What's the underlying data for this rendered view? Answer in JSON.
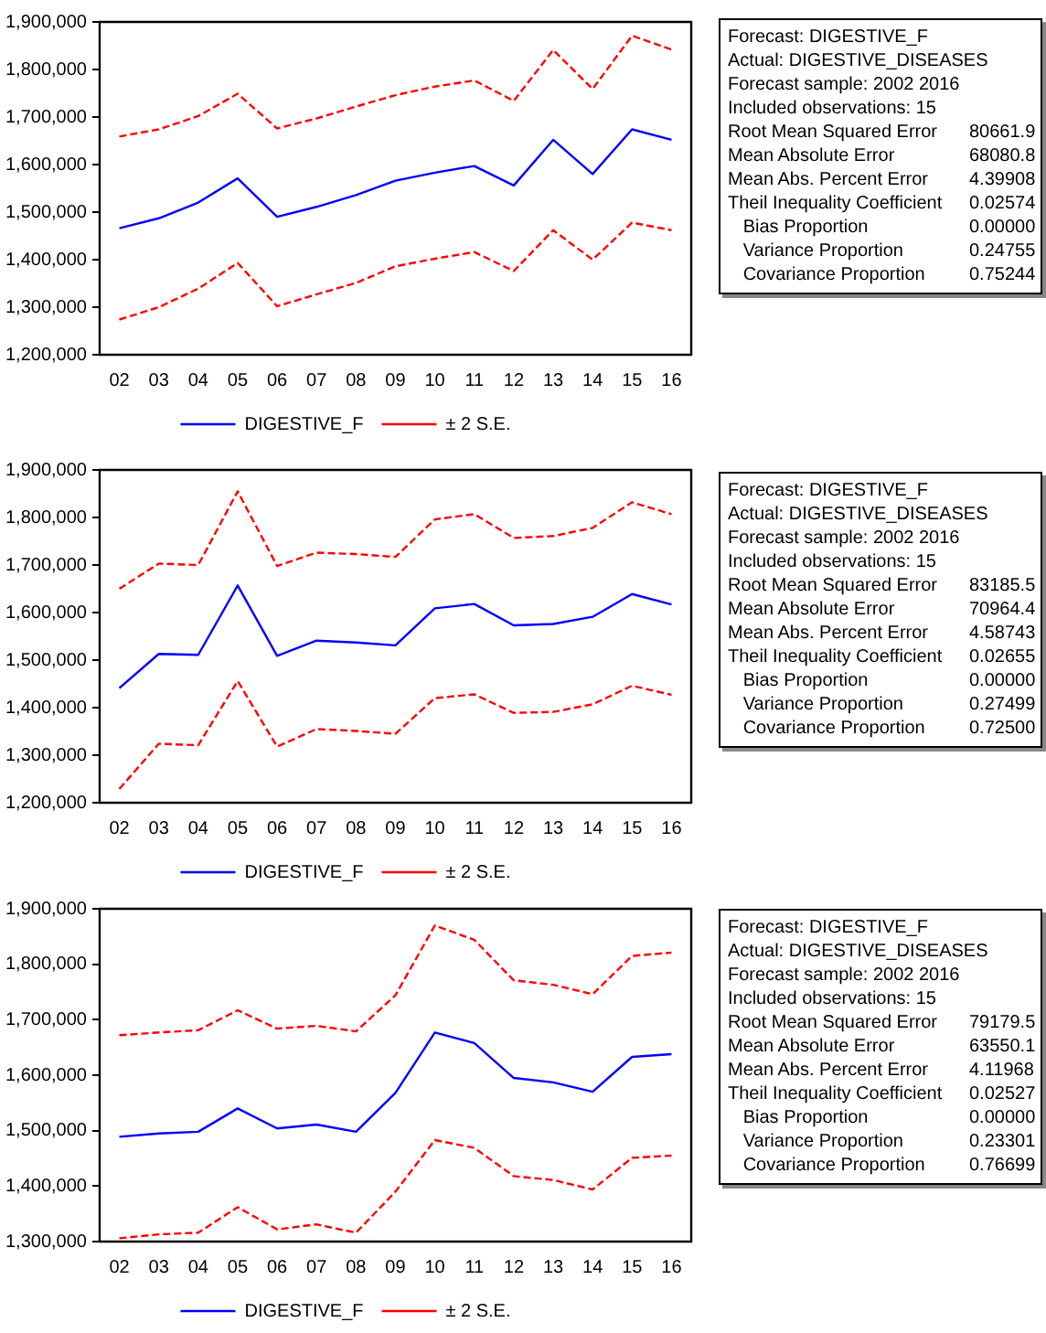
{
  "chart_data": [
    {
      "type": "line",
      "categories": [
        "02",
        "03",
        "04",
        "05",
        "06",
        "07",
        "08",
        "09",
        "10",
        "11",
        "12",
        "13",
        "14",
        "15",
        "16"
      ],
      "ylim": [
        1200000,
        1900000
      ],
      "yticks": [
        {
          "value": 1200000,
          "label": "1,200,000"
        },
        {
          "value": 1300000,
          "label": "1,300,000"
        },
        {
          "value": 1400000,
          "label": "1,400,000"
        },
        {
          "value": 1500000,
          "label": "1,500,000"
        },
        {
          "value": 1600000,
          "label": "1,600,000"
        },
        {
          "value": 1700000,
          "label": "1,700,000"
        },
        {
          "value": 1800000,
          "label": "1,800,000"
        },
        {
          "value": 1900000,
          "label": "1,900,000"
        }
      ],
      "grid": false,
      "legend": "bottom",
      "marker": "none",
      "series": [
        {
          "name": "DIGESTIVE_F",
          "color": "#0000ff",
          "line_style": "solid",
          "values": [
            1466000,
            1487000,
            1520000,
            1571000,
            1490000,
            1511000,
            1536000,
            1566000,
            1583000,
            1597000,
            1556000,
            1652000,
            1580000,
            1674000,
            1652000
          ]
        },
        {
          "name": "± 2 S.E.",
          "color": "#ff0000",
          "line_style": "dashed",
          "values": [
            1659000,
            1674000,
            1702000,
            1749000,
            1676000,
            1697000,
            1722000,
            1746000,
            1764000,
            1777000,
            1734000,
            1841000,
            1759000,
            1871000,
            1842000
          ]
        },
        {
          "color": "#ff0000",
          "line_style": "dashed",
          "values": [
            1274000,
            1300000,
            1339000,
            1393000,
            1302000,
            1327000,
            1351000,
            1386000,
            1402000,
            1416000,
            1376000,
            1462000,
            1400000,
            1478000,
            1462000
          ]
        }
      ]
    },
    {
      "type": "other",
      "annotations": [
        "Forecast: DIGESTIVE_F",
        "Actual: DIGESTIVE_DISEASES",
        "Forecast sample: 2002 2016",
        "Included observations: 15",
        "Root Mean Squared Error\t80661.9",
        "Mean Absolute Error\t68080.8",
        "Mean Abs. Percent Error\t4.39908",
        "Theil Inequality Coefficient\t0.02574",
        "   Bias Proportion\t0.00000",
        "   Variance Proportion\t0.24755",
        "   Covariance Proportion\t0.75244"
      ]
    },
    {
      "type": "line",
      "categories": [
        "02",
        "03",
        "04",
        "05",
        "06",
        "07",
        "08",
        "09",
        "10",
        "11",
        "12",
        "13",
        "14",
        "15",
        "16"
      ],
      "ylim": [
        1200000,
        1900000
      ],
      "yticks": [
        {
          "value": 1200000,
          "label": "1,200,000"
        },
        {
          "value": 1300000,
          "label": "1,300,000"
        },
        {
          "value": 1400000,
          "label": "1,400,000"
        },
        {
          "value": 1500000,
          "label": "1,500,000"
        },
        {
          "value": 1600000,
          "label": "1,600,000"
        },
        {
          "value": 1700000,
          "label": "1,700,000"
        },
        {
          "value": 1800000,
          "label": "1,800,000"
        },
        {
          "value": 1900000,
          "label": "1,900,000"
        }
      ],
      "grid": false,
      "legend": "bottom",
      "marker": "none",
      "series": [
        {
          "name": "DIGESTIVE_F",
          "color": "#0000ff",
          "line_style": "solid",
          "values": [
            1441000,
            1513000,
            1511000,
            1657000,
            1509000,
            1541000,
            1537000,
            1531000,
            1609000,
            1618000,
            1573000,
            1576000,
            1591000,
            1639000,
            1617000
          ]
        },
        {
          "name": "± 2 S.E.",
          "color": "#ff0000",
          "line_style": "dashed",
          "values": [
            1650000,
            1703000,
            1700000,
            1855000,
            1698000,
            1726000,
            1723000,
            1717000,
            1796000,
            1807000,
            1757000,
            1761000,
            1778000,
            1832000,
            1807000
          ]
        },
        {
          "color": "#ff0000",
          "line_style": "dashed",
          "values": [
            1229000,
            1324000,
            1321000,
            1456000,
            1318000,
            1355000,
            1351000,
            1345000,
            1420000,
            1428000,
            1389000,
            1391000,
            1407000,
            1446000,
            1427000
          ]
        }
      ]
    },
    {
      "type": "other",
      "annotations": [
        "Forecast: DIGESTIVE_F",
        "Actual: DIGESTIVE_DISEASES",
        "Forecast sample: 2002 2016",
        "Included observations: 15",
        "Root Mean Squared Error\t83185.5",
        "Mean Absolute Error\t70964.4",
        "Mean Abs. Percent Error\t4.58743",
        "Theil Inequality Coefficient\t0.02655",
        "   Bias Proportion\t0.00000",
        "   Variance Proportion\t0.27499",
        "   Covariance Proportion\t0.72500"
      ]
    },
    {
      "type": "line",
      "categories": [
        "02",
        "03",
        "04",
        "05",
        "06",
        "07",
        "08",
        "09",
        "10",
        "11",
        "12",
        "13",
        "14",
        "15",
        "16"
      ],
      "ylim": [
        1300000,
        1900000
      ],
      "yticks": [
        {
          "value": 1300000,
          "label": "1,300,000"
        },
        {
          "value": 1400000,
          "label": "1,400,000"
        },
        {
          "value": 1500000,
          "label": "1,500,000"
        },
        {
          "value": 1600000,
          "label": "1,600,000"
        },
        {
          "value": 1700000,
          "label": "1,700,000"
        },
        {
          "value": 1800000,
          "label": "1,800,000"
        },
        {
          "value": 1900000,
          "label": "1,900,000"
        }
      ],
      "grid": false,
      "legend": "bottom",
      "marker": "none",
      "series": [
        {
          "name": "DIGESTIVE_F",
          "color": "#0000ff",
          "line_style": "solid",
          "values": [
            1489000,
            1495000,
            1498000,
            1540000,
            1504000,
            1511000,
            1498000,
            1568000,
            1677000,
            1658000,
            1595000,
            1587000,
            1570000,
            1633000,
            1638000
          ]
        },
        {
          "name": "± 2 S.E.",
          "color": "#ff0000",
          "line_style": "dashed",
          "values": [
            1672000,
            1677000,
            1681000,
            1717000,
            1684000,
            1689000,
            1679000,
            1744000,
            1870000,
            1844000,
            1771000,
            1763000,
            1746000,
            1815000,
            1821000
          ]
        },
        {
          "color": "#ff0000",
          "line_style": "dashed",
          "values": [
            1306000,
            1313000,
            1316000,
            1362000,
            1322000,
            1331000,
            1316000,
            1390000,
            1483000,
            1469000,
            1418000,
            1411000,
            1394000,
            1451000,
            1455000
          ]
        }
      ]
    },
    {
      "type": "other",
      "annotations": [
        "Forecast: DIGESTIVE_F",
        "Actual: DIGESTIVE_DISEASES",
        "Forecast sample: 2002 2016",
        "Included observations: 15",
        "Root Mean Squared Error\t79179.5",
        "Mean Absolute Error\t63550.1",
        "Mean Abs. Percent Error\t4.11968",
        "Theil Inequality Coefficient\t0.02527",
        "   Bias Proportion\t0.00000",
        "   Variance Proportion\t0.23301",
        "   Covariance Proportion\t0.76699"
      ]
    }
  ]
}
